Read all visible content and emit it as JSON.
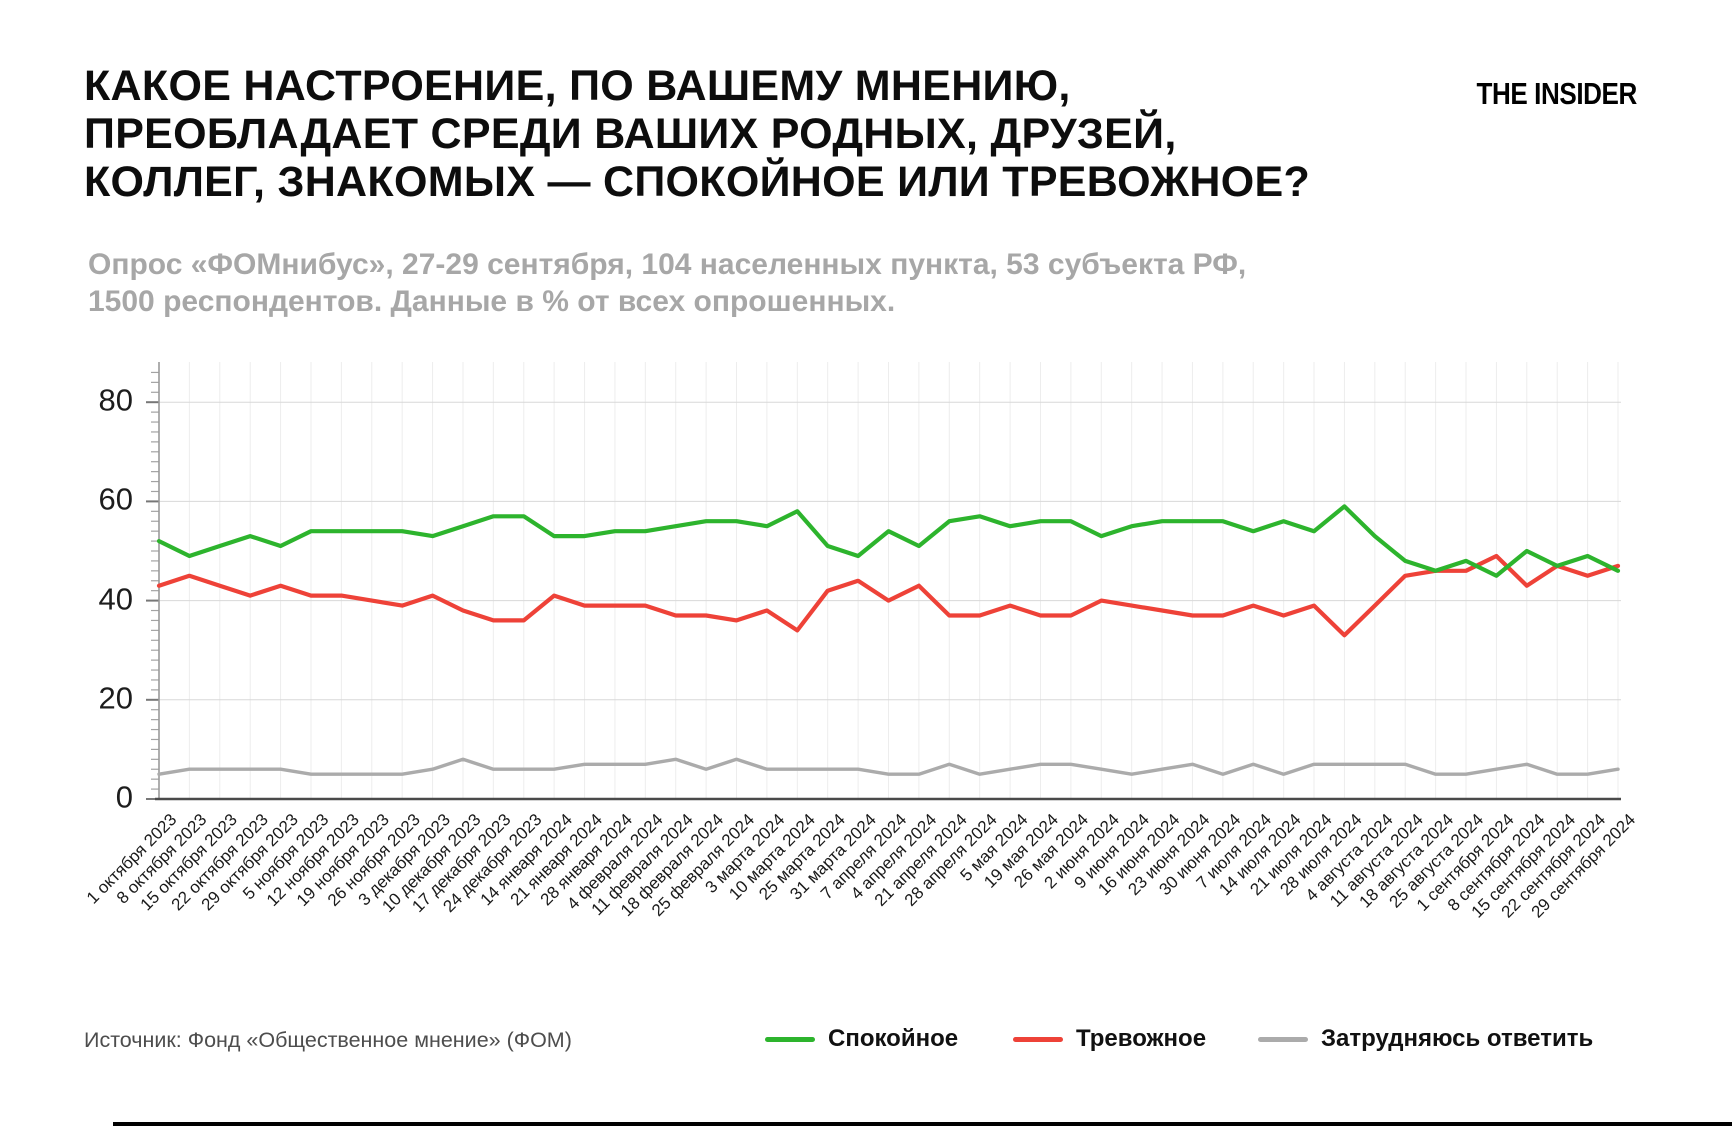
{
  "header": {
    "title_lines": [
      "КАКОЕ НАСТРОЕНИЕ, ПО ВАШЕМУ МНЕНИЮ,",
      "ПРЕОБЛАДАЕТ СРЕДИ ВАШИХ РОДНЫХ, ДРУЗЕЙ,",
      "КОЛЛЕГ, ЗНАКОМЫХ — СПОКОЙНОЕ ИЛИ ТРЕВОЖНОЕ?"
    ],
    "logo": "THE INSIDER",
    "subtitle_lines": [
      "Опрос «ФОМнибус», 27-29 сентября, 104 населенных пункта, 53 субъекта РФ,",
      "1500 респондентов. Данные в % от всех опрошенных."
    ]
  },
  "footer": {
    "source": "Источник: Фонд «Общественное мнение» (ФОМ)"
  },
  "legend": [
    {
      "label": "Спокойное",
      "color": "#2db42d"
    },
    {
      "label": "Тревожное",
      "color": "#ee4238"
    },
    {
      "label": "Затрудняюсь ответить",
      "color": "#ababab"
    }
  ],
  "chart_data": {
    "type": "line",
    "title": "",
    "xlabel": "",
    "ylabel": "",
    "ylim": [
      0,
      80
    ],
    "yticks": [
      0,
      20,
      40,
      60,
      80
    ],
    "grid": true,
    "legend_position": "bottom",
    "x": [
      "1 октября 2023",
      "8 октября 2023",
      "15 октября 2023",
      "22 октября 2023",
      "29 октября 2023",
      "5 ноября 2023",
      "12 ноября 2023",
      "19 ноября 2023",
      "26 ноября 2023",
      "3 декабря 2023",
      "10 декабря 2023",
      "17 декабря 2023",
      "24 декабря 2023",
      "14 января 2024",
      "21 января 2024",
      "28 января 2024",
      "4 февраля 2024",
      "11 февраля 2024",
      "18 февраля 2024",
      "25 февраля 2024",
      "3 марта 2024",
      "10 марта 2024",
      "25 марта 2024",
      "31 марта 2024",
      "7 апреля 2024",
      "4 апреля 2024",
      "21 апреля 2024",
      "28 апреля 2024",
      "5 мая 2024",
      "19 мая 2024",
      "26 мая 2024",
      "2 июня 2024",
      "9 июня 2024",
      "16 июня 2024",
      "23 июня 2024",
      "30 июня 2024",
      "7 июля 2024",
      "14 июля 2024",
      "21 июля 2024",
      "28 июля 2024",
      "4 августа 2024",
      "11 августа 2024",
      "18 августа 2024",
      "25 августа 2024",
      "1 сентября 2024",
      "8 сентября 2024",
      "15 сентября 2024",
      "22 сентября 2024",
      "29 сентября 2024"
    ],
    "series": [
      {
        "name": "Спокойное",
        "color": "#2db42d",
        "values": [
          52,
          49,
          51,
          53,
          51,
          54,
          54,
          54,
          54,
          53,
          55,
          57,
          57,
          53,
          53,
          54,
          54,
          55,
          56,
          56,
          55,
          58,
          51,
          49,
          54,
          51,
          56,
          57,
          55,
          56,
          56,
          53,
          55,
          56,
          56,
          56,
          54,
          56,
          54,
          59,
          53,
          48,
          46,
          48,
          45,
          50,
          47,
          49,
          46
        ]
      },
      {
        "name": "Тревожное",
        "color": "#ee4238",
        "values": [
          43,
          45,
          43,
          41,
          43,
          41,
          41,
          40,
          39,
          41,
          38,
          36,
          36,
          41,
          39,
          39,
          39,
          37,
          37,
          36,
          38,
          34,
          42,
          44,
          40,
          43,
          37,
          37,
          39,
          37,
          37,
          40,
          39,
          38,
          37,
          37,
          39,
          37,
          39,
          33,
          39,
          45,
          46,
          46,
          49,
          43,
          47,
          45,
          47
        ]
      },
      {
        "name": "Затрудняюсь ответить",
        "color": "#ababab",
        "values": [
          5,
          6,
          6,
          6,
          6,
          5,
          5,
          5,
          5,
          6,
          8,
          6,
          6,
          6,
          7,
          7,
          7,
          8,
          6,
          8,
          6,
          6,
          6,
          6,
          5,
          5,
          7,
          5,
          6,
          7,
          7,
          6,
          5,
          6,
          7,
          5,
          7,
          5,
          7,
          7,
          7,
          7,
          5,
          5,
          6,
          7,
          5,
          5,
          6
        ]
      }
    ]
  }
}
